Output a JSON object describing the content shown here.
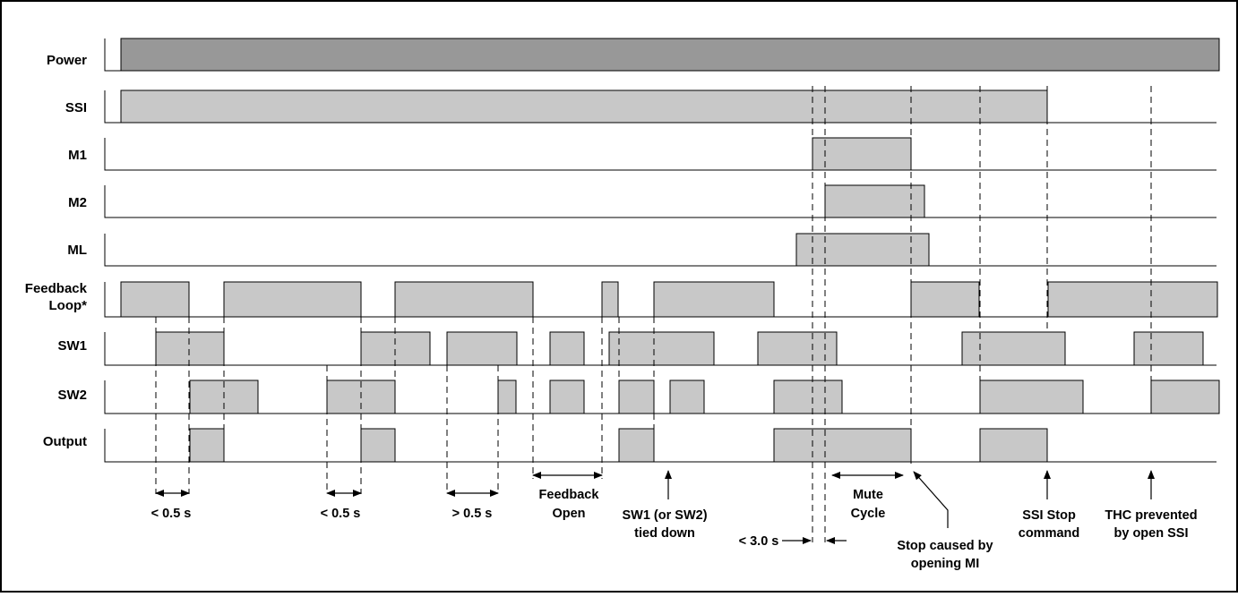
{
  "colors": {
    "power_fill": "#989898",
    "signal_fill": "#c8c8c8",
    "outline": "#000000",
    "background": "#ffffff"
  },
  "signals": [
    {
      "id": "power",
      "label": "Power"
    },
    {
      "id": "ssi",
      "label": "SSI"
    },
    {
      "id": "m1",
      "label": "M1"
    },
    {
      "id": "m2",
      "label": "M2"
    },
    {
      "id": "ml",
      "label": "ML"
    },
    {
      "id": "feedback",
      "label_line1": "Feedback",
      "label_line2": "Loop*"
    },
    {
      "id": "sw1",
      "label": "SW1"
    },
    {
      "id": "sw2",
      "label": "SW2"
    },
    {
      "id": "output",
      "label": "Output"
    }
  ],
  "annotations": {
    "lt05_a": "< 0.5 s",
    "lt05_b": "< 0.5 s",
    "gt05": "> 0.5 s",
    "feedback_open_1": "Feedback",
    "feedback_open_2": "Open",
    "sw_tied_1": "SW1 (or SW2)",
    "sw_tied_2": "tied down",
    "lt30": "< 3.0 s",
    "mute_1": "Mute",
    "mute_2": "Cycle",
    "stop_mi_1": "Stop caused by",
    "stop_mi_2": "opening MI",
    "ssi_stop_1": "SSI Stop",
    "ssi_stop_2": "command",
    "thc_1": "THC prevented",
    "thc_2": "by open SSI"
  }
}
